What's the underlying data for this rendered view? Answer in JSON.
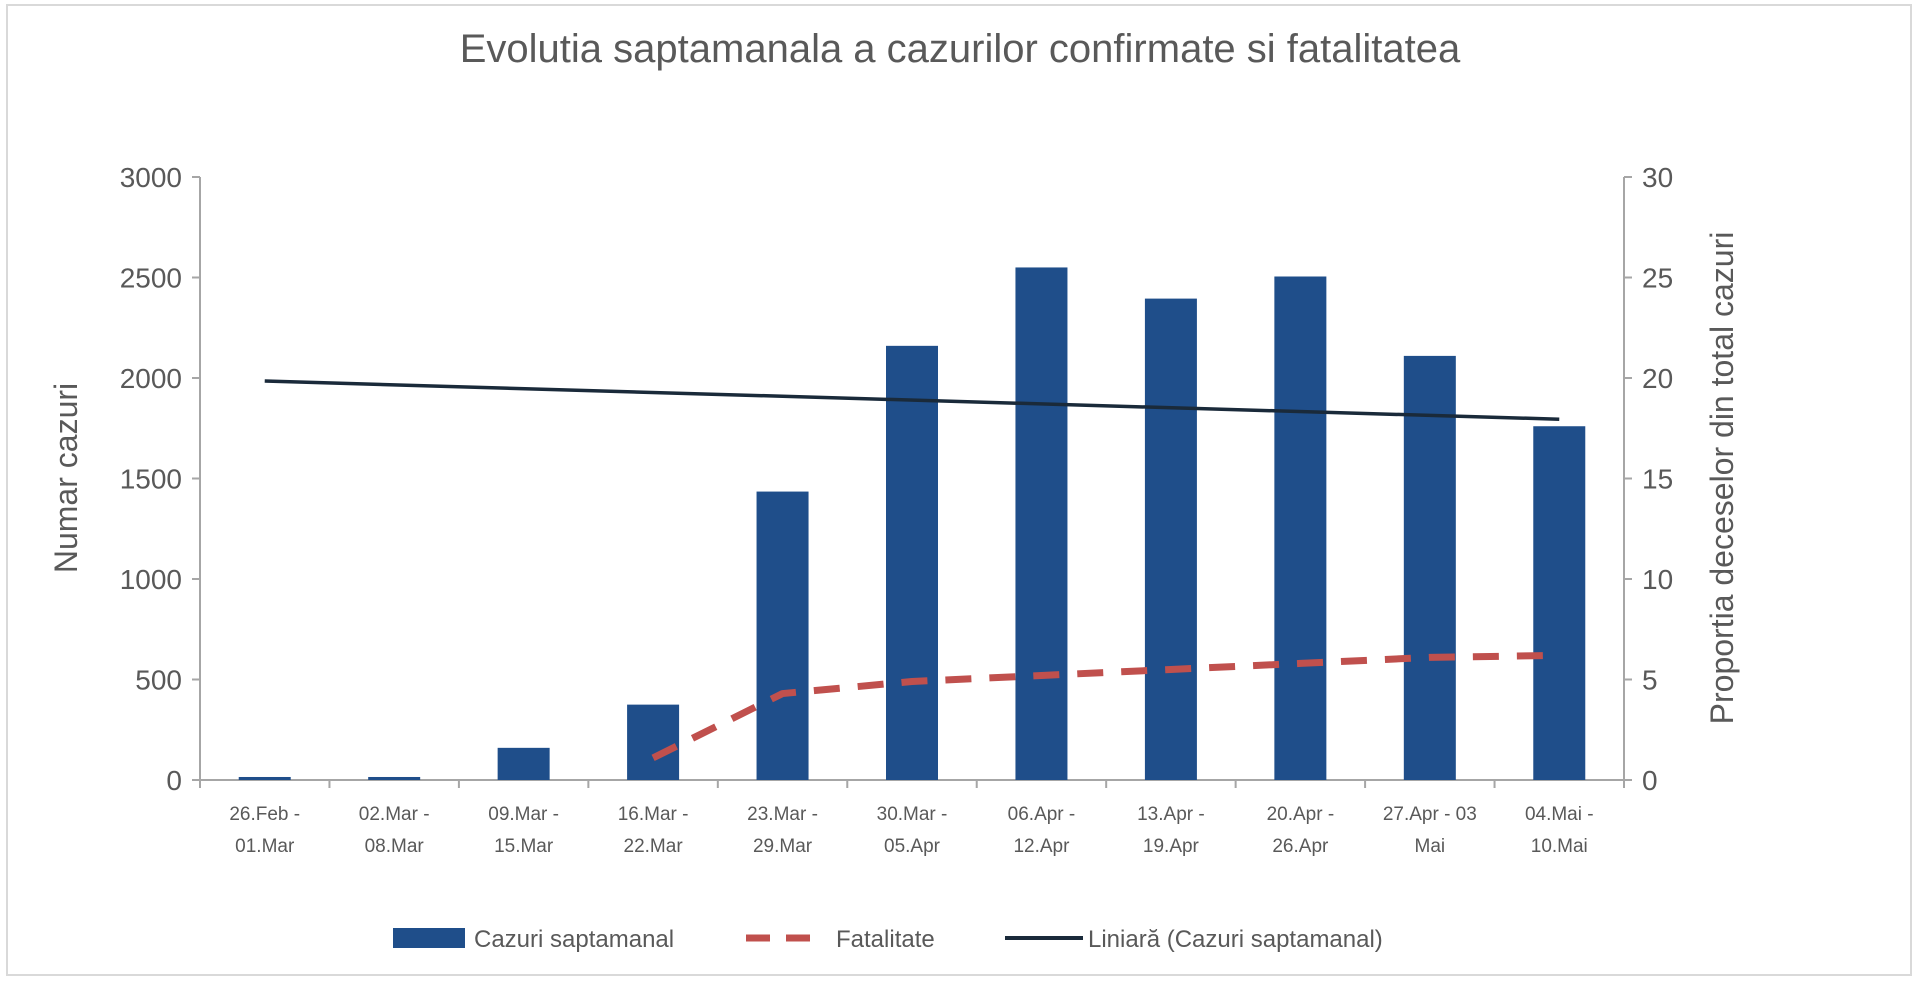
{
  "chart_data": {
    "type": "bar",
    "title": "Evolutia saptamanala a cazurilor confirmate si fatalitatea",
    "xlabel": "",
    "ylabel": "Numar cazuri",
    "y2label": "Proportia deceselor din total cazuri",
    "ylim": [
      0,
      3000
    ],
    "y2lim": [
      0,
      30
    ],
    "yticks": [
      "0",
      "500",
      "1000",
      "1500",
      "2000",
      "2500",
      "3000"
    ],
    "y2ticks": [
      "0",
      "5",
      "10",
      "15",
      "20",
      "25",
      "30"
    ],
    "grid": false,
    "legend_position": "bottom",
    "categories": [
      [
        "26.Feb -",
        "01.Mar"
      ],
      [
        "02.Mar -",
        "08.Mar"
      ],
      [
        "09.Mar -",
        "15.Mar"
      ],
      [
        "16.Mar -",
        "22.Mar"
      ],
      [
        "23.Mar -",
        "29.Mar"
      ],
      [
        "30.Mar -",
        "05.Apr"
      ],
      [
        "06.Apr -",
        "12.Apr"
      ],
      [
        "13.Apr -",
        "19.Apr"
      ],
      [
        "20.Apr -",
        "26.Apr"
      ],
      [
        "27.Apr - 03",
        "Mai"
      ],
      [
        "04.Mai -",
        "10.Mai"
      ]
    ],
    "series": [
      {
        "name": "Cazuri saptamanal",
        "type": "bar",
        "axis": "left",
        "color": "#1f4e8a",
        "values": [
          15,
          15,
          160,
          375,
          1435,
          2160,
          2550,
          2395,
          2505,
          2110,
          1760
        ]
      },
      {
        "name": "Fatalitate",
        "type": "line-dashed",
        "axis": "right",
        "color": "#c0504d",
        "values": [
          null,
          null,
          null,
          1.1,
          4.3,
          4.9,
          5.2,
          5.5,
          5.8,
          6.1,
          6.2
        ]
      },
      {
        "name": "Liniară (Cazuri saptamanal)",
        "type": "trendline",
        "axis": "left",
        "color": "#1a2a3a",
        "values": [
          1985,
          1966,
          1947,
          1928,
          1909,
          1890,
          1871,
          1852,
          1833,
          1814,
          1795
        ]
      }
    ]
  }
}
